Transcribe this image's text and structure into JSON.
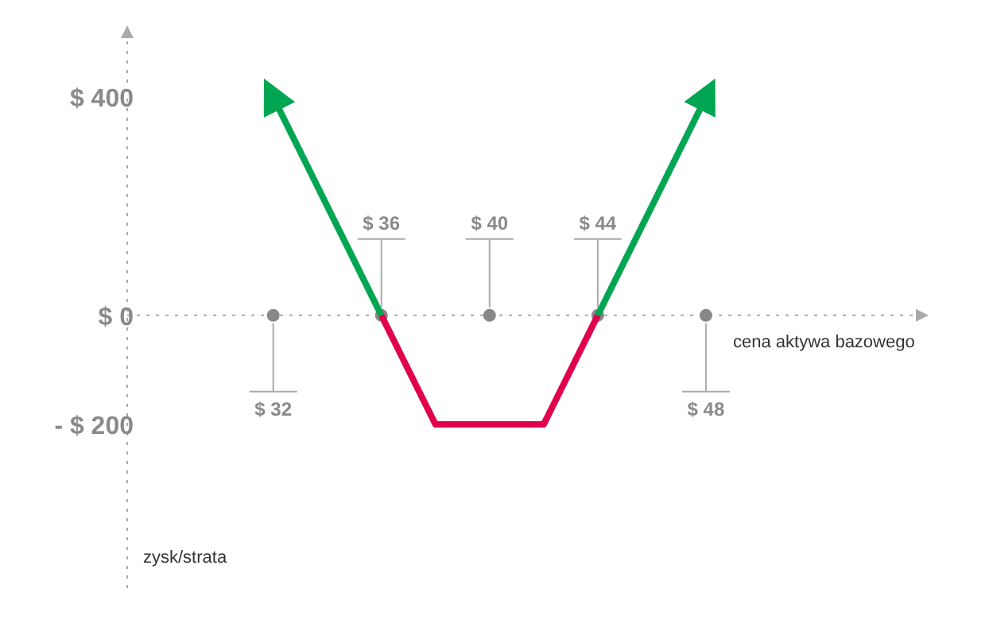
{
  "chart_data": {
    "type": "line",
    "xlabel": "cena aktywa bazowego",
    "ylabel": "zysk/strata",
    "xlim": [
      26.6,
      56
    ],
    "ylim": [
      -500,
      520
    ],
    "xticks": [
      {
        "value": 36,
        "label": "$ 36"
      },
      {
        "value": 40,
        "label": "$ 40"
      },
      {
        "value": 44,
        "label": "$ 44"
      }
    ],
    "annotations": [
      {
        "text": "$ 32",
        "x": 32,
        "y": 0
      },
      {
        "text": "$ 48",
        "x": 48,
        "y": 0
      }
    ],
    "yticks": [
      {
        "value": 400,
        "label": "$ 400"
      },
      {
        "value": 0,
        "label": "$ 0"
      },
      {
        "value": -200,
        "label": "- $ 200"
      }
    ],
    "series": [
      {
        "color": "#00a651",
        "x": [
          32,
          36,
          40,
          44,
          48
        ],
        "values": [
          400,
          0,
          null,
          0,
          400
        ]
      },
      {
        "color": "#e0004d",
        "x": [
          36,
          38,
          42,
          44
        ],
        "values": [
          0,
          -200,
          -200,
          0
        ]
      }
    ]
  }
}
